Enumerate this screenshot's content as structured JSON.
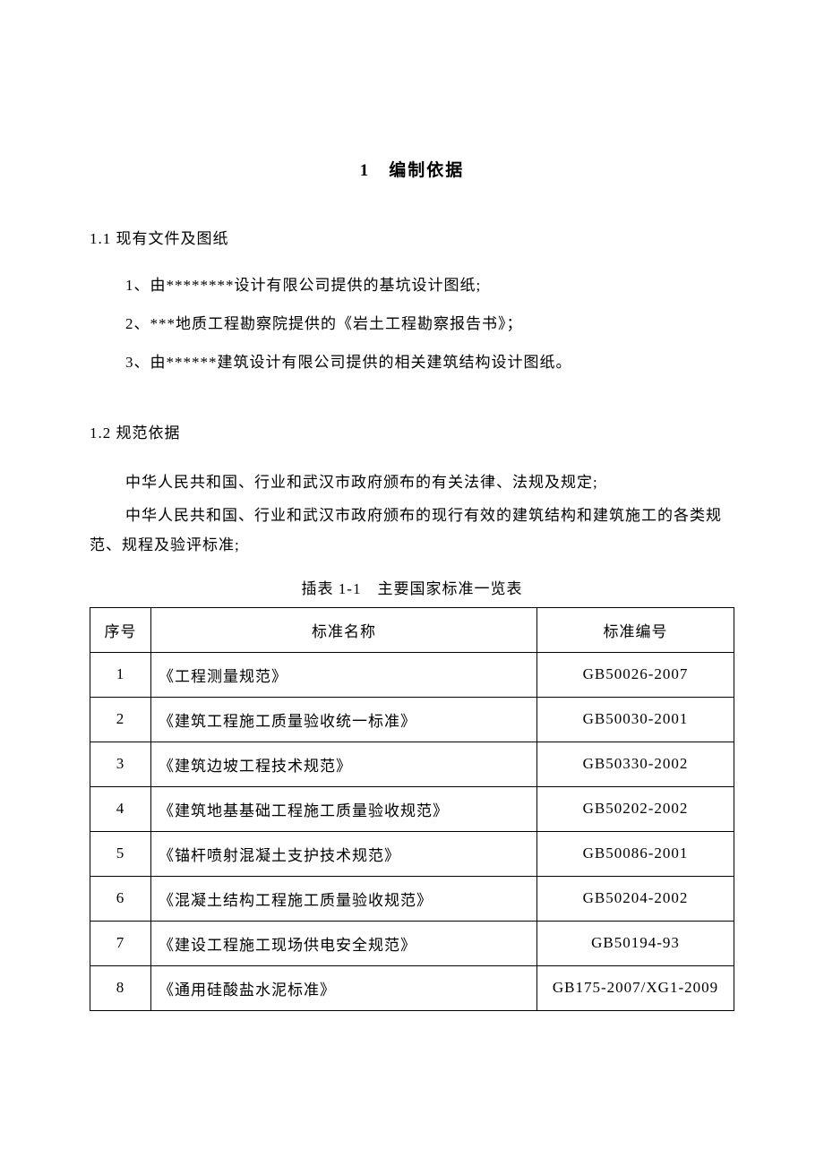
{
  "title": "1　编制依据",
  "section1": {
    "heading": "1.1 现有文件及图纸",
    "items": [
      "1、由********设计有限公司提供的基坑设计图纸;",
      "2、***地质工程勘察院提供的《岩土工程勘察报告书》；",
      "3、由******建筑设计有限公司提供的相关建筑结构设计图纸。"
    ]
  },
  "section2": {
    "heading": "1.2 规范依据",
    "para1": "中华人民共和国、行业和武汉市政府颁布的有关法律、法规及规定;",
    "para2": "中华人民共和国、行业和武汉市政府颁布的现行有效的建筑结构和建筑施工的各类规范、规程及验评标准;"
  },
  "table": {
    "caption": "插表 1-1　主要国家标准一览表",
    "headers": {
      "num": "序号",
      "name": "标准名称",
      "code": "标准编号"
    },
    "rows": [
      {
        "num": "1",
        "name": "《工程测量规范》",
        "code": "GB50026-2007"
      },
      {
        "num": "2",
        "name": "《建筑工程施工质量验收统一标准》",
        "code": "GB50030-2001"
      },
      {
        "num": "3",
        "name": "《建筑边坡工程技术规范》",
        "code": "GB50330-2002"
      },
      {
        "num": "4",
        "name": "《建筑地基基础工程施工质量验收规范》",
        "code": "GB50202-2002"
      },
      {
        "num": "5",
        "name": "《锚杆喷射混凝土支护技术规范》",
        "code": "GB50086-2001"
      },
      {
        "num": "6",
        "name": "《混凝土结构工程施工质量验收规范》",
        "code": "GB50204-2002"
      },
      {
        "num": "7",
        "name": "《建设工程施工现场供电安全规范》",
        "code": "GB50194-93"
      },
      {
        "num": "8",
        "name": "《通用硅酸盐水泥标准》",
        "code": "GB175-2007/XG1-2009"
      }
    ]
  },
  "colors": {
    "text": "#000000",
    "background": "#ffffff",
    "border": "#000000"
  },
  "typography": {
    "font_family": "SimSun",
    "title_fontsize": 19,
    "body_fontsize": 17
  }
}
